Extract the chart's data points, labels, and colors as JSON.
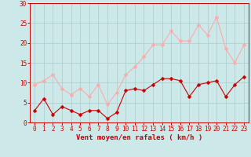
{
  "hours": [
    0,
    1,
    2,
    3,
    4,
    5,
    6,
    7,
    8,
    9,
    10,
    11,
    12,
    13,
    14,
    15,
    16,
    17,
    18,
    19,
    20,
    21,
    22,
    23
  ],
  "wind_avg": [
    3,
    6,
    2,
    4,
    3,
    2,
    3,
    3,
    1,
    2.5,
    8,
    8.5,
    8,
    9.5,
    11,
    11,
    10.5,
    6.5,
    9.5,
    10,
    10.5,
    6.5,
    9.5,
    11.5
  ],
  "wind_gust": [
    9.5,
    10.5,
    12,
    8.5,
    7,
    8.5,
    6.5,
    9.5,
    4.5,
    7.5,
    12,
    14,
    16.5,
    19.5,
    19.5,
    23,
    20.5,
    20.5,
    24.5,
    22,
    26.5,
    18.5,
    15,
    19.5
  ],
  "wind_avg_color": "#cc0000",
  "wind_gust_color": "#ffaaaa",
  "background_color": "#cce8e8",
  "grid_color": "#aacccc",
  "text_color": "#cc0000",
  "xlabel": "Vent moyen/en rafales ( km/h )",
  "ylim": [
    0,
    30
  ],
  "yticks": [
    0,
    5,
    10,
    15,
    20,
    25,
    30
  ],
  "markersize": 2.5,
  "linewidth": 0.8,
  "xlabel_fontsize": 6.5,
  "tick_fontsize": 5.5
}
